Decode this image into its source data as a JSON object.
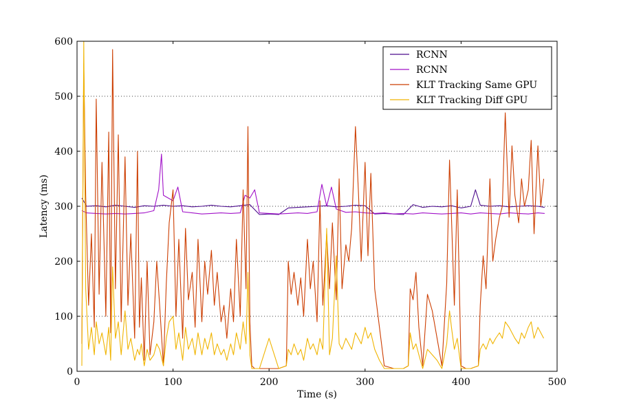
{
  "chart_data": {
    "type": "line",
    "title": "",
    "xlabel": "Time (s)",
    "ylabel": "Latency (ms)",
    "xlim": [
      0,
      500
    ],
    "ylim": [
      0,
      600
    ],
    "xticks": [
      0,
      100,
      200,
      300,
      400,
      500
    ],
    "yticks": [
      0,
      100,
      200,
      300,
      400,
      500,
      600
    ],
    "grid": "horizontal dotted",
    "legend_position": "top-right",
    "series": [
      {
        "name": "RCNN",
        "color": "#4b0a8c",
        "x": [
          5,
          10,
          20,
          30,
          40,
          50,
          60,
          70,
          80,
          90,
          100,
          110,
          120,
          130,
          140,
          150,
          160,
          170,
          180,
          190,
          200,
          210,
          220,
          230,
          240,
          250,
          260,
          270,
          280,
          290,
          300,
          310,
          320,
          330,
          340,
          350,
          360,
          370,
          380,
          390,
          400,
          410,
          415,
          420,
          430,
          440,
          450,
          460,
          470,
          480,
          487
        ],
        "y": [
          315,
          300,
          301,
          299,
          302,
          300,
          298,
          301,
          300,
          302,
          300,
          301,
          299,
          300,
          302,
          300,
          299,
          301,
          303,
          285,
          286,
          285,
          297,
          298,
          299,
          300,
          301,
          299,
          300,
          302,
          301,
          286,
          287,
          286,
          285,
          303,
          298,
          300,
          299,
          301,
          297,
          300,
          330,
          302,
          300,
          301,
          299,
          300,
          301,
          300,
          298
        ]
      },
      {
        "name": "RCNN",
        "color": "#a010c8",
        "x": [
          5,
          10,
          20,
          30,
          40,
          50,
          60,
          70,
          80,
          85,
          88,
          90,
          100,
          105,
          110,
          120,
          130,
          140,
          150,
          160,
          170,
          175,
          180,
          185,
          190,
          200,
          210,
          220,
          230,
          240,
          250,
          255,
          260,
          265,
          270,
          280,
          290,
          300,
          310,
          320,
          330,
          340,
          350,
          360,
          370,
          380,
          390,
          400,
          410,
          420,
          430,
          440,
          450,
          460,
          470,
          480,
          487
        ],
        "y": [
          292,
          288,
          287,
          286,
          287,
          286,
          287,
          288,
          292,
          330,
          395,
          320,
          310,
          335,
          290,
          288,
          286,
          287,
          288,
          287,
          288,
          320,
          315,
          330,
          288,
          287,
          286,
          287,
          288,
          287,
          290,
          340,
          300,
          335,
          295,
          289,
          290,
          288,
          287,
          288,
          286,
          287,
          286,
          288,
          287,
          286,
          287,
          288,
          286,
          288,
          287,
          286,
          288,
          287,
          286,
          288,
          287
        ]
      },
      {
        "name": "KLT Tracking Same GPU",
        "color": "#cc3d00",
        "x": [
          5,
          7,
          9,
          12,
          15,
          18,
          20,
          23,
          26,
          30,
          33,
          35,
          37,
          40,
          43,
          46,
          50,
          53,
          56,
          60,
          63,
          65,
          67,
          70,
          73,
          76,
          80,
          83,
          86,
          90,
          93,
          96,
          100,
          103,
          106,
          110,
          113,
          116,
          120,
          123,
          126,
          130,
          133,
          136,
          140,
          143,
          146,
          150,
          153,
          156,
          160,
          163,
          166,
          170,
          173,
          176,
          178,
          180,
          182,
          185,
          190,
          200,
          210,
          218,
          220,
          223,
          226,
          230,
          233,
          236,
          240,
          243,
          246,
          250,
          253,
          256,
          260,
          263,
          266,
          270,
          273,
          276,
          280,
          283,
          286,
          290,
          293,
          296,
          300,
          303,
          306,
          310,
          315,
          320,
          330,
          340,
          345,
          347,
          350,
          353,
          356,
          360,
          365,
          370,
          375,
          380,
          385,
          388,
          390,
          393,
          396,
          400,
          405,
          410,
          418,
          420,
          423,
          426,
          430,
          433,
          436,
          440,
          443,
          446,
          450,
          453,
          456,
          460,
          463,
          466,
          470,
          473,
          476,
          480,
          483,
          486
        ],
        "y": [
          50,
          560,
          320,
          120,
          250,
          80,
          495,
          140,
          380,
          100,
          435,
          70,
          585,
          150,
          430,
          90,
          390,
          120,
          250,
          60,
          400,
          80,
          170,
          20,
          200,
          30,
          90,
          200,
          120,
          10,
          160,
          270,
          330,
          100,
          240,
          60,
          260,
          130,
          180,
          80,
          240,
          90,
          200,
          140,
          220,
          120,
          180,
          90,
          120,
          60,
          150,
          90,
          240,
          100,
          330,
          150,
          445,
          90,
          10,
          5,
          5,
          5,
          5,
          10,
          200,
          140,
          180,
          120,
          170,
          100,
          240,
          150,
          200,
          90,
          310,
          120,
          250,
          150,
          270,
          130,
          350,
          150,
          230,
          200,
          260,
          445,
          330,
          200,
          380,
          210,
          360,
          150,
          80,
          10,
          5,
          5,
          10,
          150,
          130,
          180,
          80,
          10,
          140,
          110,
          60,
          10,
          160,
          384,
          280,
          120,
          330,
          10,
          5,
          5,
          10,
          120,
          210,
          150,
          350,
          200,
          240,
          280,
          300,
          470,
          280,
          410,
          320,
          270,
          350,
          300,
          330,
          420,
          250,
          410,
          300,
          350
        ]
      },
      {
        "name": "KLT Tracking Diff GPU",
        "color": "#f0b400",
        "x": [
          5,
          7,
          9,
          12,
          15,
          18,
          20,
          23,
          26,
          30,
          33,
          35,
          37,
          40,
          43,
          46,
          50,
          53,
          56,
          60,
          63,
          65,
          67,
          70,
          73,
          76,
          80,
          83,
          86,
          90,
          93,
          96,
          100,
          103,
          106,
          110,
          113,
          116,
          120,
          123,
          126,
          130,
          133,
          136,
          140,
          143,
          146,
          150,
          153,
          156,
          160,
          163,
          166,
          170,
          173,
          176,
          178,
          180,
          182,
          185,
          190,
          200,
          210,
          218,
          220,
          223,
          226,
          230,
          233,
          236,
          240,
          243,
          246,
          250,
          253,
          256,
          260,
          263,
          266,
          270,
          273,
          276,
          280,
          283,
          286,
          290,
          293,
          296,
          300,
          303,
          306,
          310,
          315,
          320,
          330,
          340,
          345,
          347,
          350,
          353,
          356,
          360,
          365,
          370,
          375,
          380,
          385,
          388,
          390,
          393,
          396,
          400,
          405,
          410,
          418,
          420,
          423,
          426,
          430,
          433,
          436,
          440,
          443,
          446,
          450,
          453,
          456,
          460,
          463,
          466,
          470,
          473,
          476,
          480,
          483,
          486
        ],
        "y": [
          10,
          600,
          150,
          40,
          80,
          30,
          90,
          50,
          70,
          30,
          80,
          20,
          190,
          60,
          90,
          30,
          110,
          40,
          60,
          20,
          40,
          30,
          50,
          10,
          40,
          20,
          30,
          50,
          40,
          10,
          60,
          90,
          100,
          40,
          70,
          20,
          80,
          40,
          60,
          30,
          70,
          30,
          60,
          40,
          70,
          30,
          50,
          30,
          40,
          20,
          50,
          30,
          70,
          40,
          90,
          50,
          180,
          30,
          5,
          5,
          5,
          60,
          5,
          10,
          40,
          30,
          50,
          30,
          40,
          20,
          60,
          40,
          50,
          30,
          60,
          40,
          260,
          30,
          60,
          210,
          50,
          40,
          60,
          50,
          40,
          70,
          60,
          50,
          80,
          60,
          70,
          40,
          20,
          5,
          5,
          5,
          10,
          70,
          40,
          50,
          30,
          5,
          40,
          30,
          20,
          5,
          50,
          110,
          80,
          40,
          60,
          5,
          5,
          5,
          10,
          40,
          50,
          40,
          60,
          50,
          60,
          70,
          60,
          90,
          80,
          70,
          60,
          50,
          70,
          60,
          80,
          90,
          60,
          80,
          70,
          60
        ]
      }
    ]
  }
}
